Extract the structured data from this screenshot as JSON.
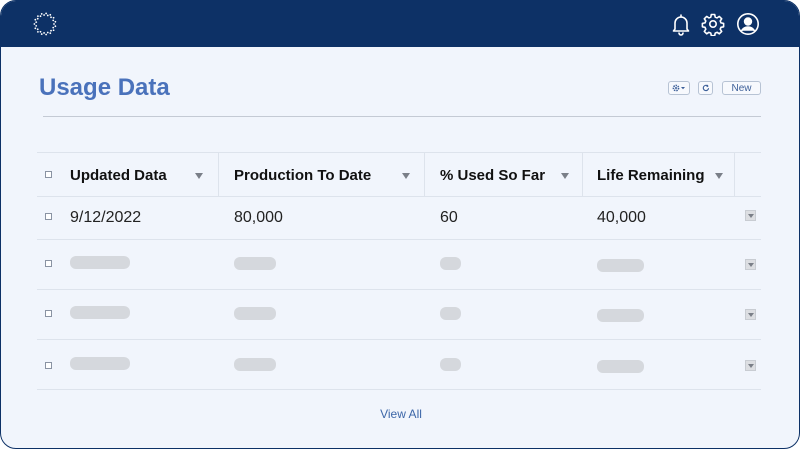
{
  "header": {
    "icons": [
      "logo-ring-icon",
      "bell-icon",
      "gear-icon",
      "user-circle-icon"
    ]
  },
  "page": {
    "title": "Usage Data",
    "toolbar": {
      "settings_icon": "gear-icon",
      "refresh_icon": "refresh-icon",
      "new_label": "New"
    }
  },
  "table": {
    "columns": [
      {
        "label": "Updated Data"
      },
      {
        "label": "Production To Date"
      },
      {
        "label": "% Used So Far"
      },
      {
        "label": "Life Remaining"
      }
    ],
    "rows": [
      {
        "updated": "9/12/2022",
        "production": "80,000",
        "used": "60",
        "remaining": "40,000"
      }
    ],
    "placeholder_row_count": 3
  },
  "footer": {
    "view_all_label": "View All"
  },
  "colors": {
    "header_bg": "#0d3166",
    "title": "#4a72bb",
    "page_bg": "#f1f5fc",
    "link": "#3c66a8"
  }
}
